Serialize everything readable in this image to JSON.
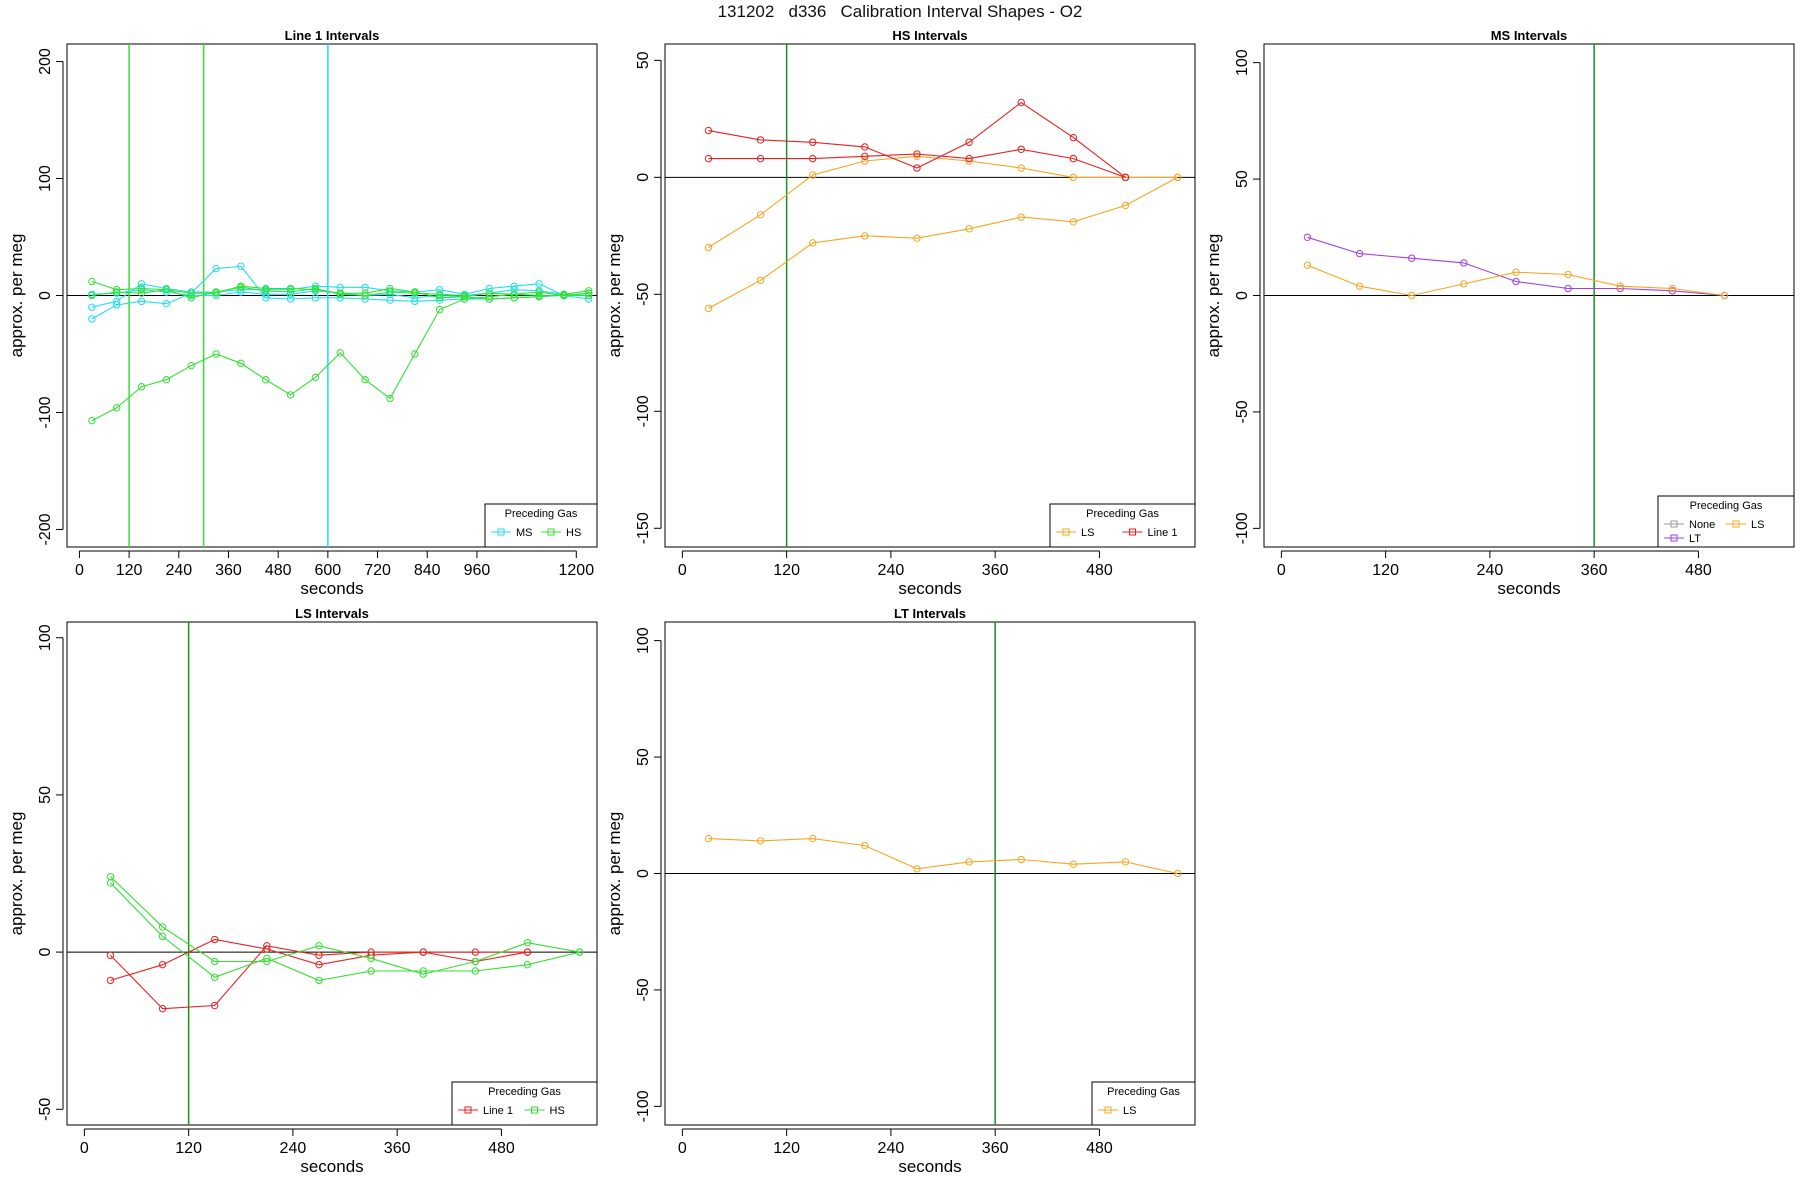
{
  "title": "131202   d336   Calibration Interval Shapes - O2",
  "colors": {
    "MS": "#22DDEE",
    "HS": "#33E033",
    "LS": "#F5A623",
    "Line 1": "#E82020",
    "LT": "#A040E0",
    "None": "#999999"
  },
  "chart_data": [
    {
      "type": "line",
      "title": "Line 1 Intervals",
      "xlabel": "seconds",
      "ylabel": "approx. per meg",
      "xlim": [
        -30,
        1250
      ],
      "ylim": [
        -215,
        215
      ],
      "xticks": [
        0,
        120,
        240,
        360,
        480,
        600,
        720,
        840,
        960,
        1200
      ],
      "yticks": [
        -200,
        -100,
        0,
        100,
        200
      ],
      "vlines": [
        {
          "x": 120,
          "color": "HS"
        },
        {
          "x": 300,
          "color": "HS"
        },
        {
          "x": 600,
          "color": "MS"
        }
      ],
      "legend": {
        "title": "Preceding Gas",
        "position": "bottom-right",
        "entries": [
          "MS",
          "HS"
        ]
      },
      "series": [
        {
          "name": "MS",
          "x": [
            30,
            90,
            150,
            210,
            270,
            330,
            390,
            450,
            510,
            570,
            630,
            690,
            750,
            810,
            870,
            930,
            990,
            1050,
            1110,
            1170,
            1230
          ],
          "y": [
            -20,
            -8,
            -5,
            -7,
            2,
            23,
            25,
            -2,
            -3,
            -2,
            -2,
            -3,
            -4,
            -5,
            -4,
            -3,
            -3,
            -2,
            -1,
            0,
            -3
          ]
        },
        {
          "name": "MS",
          "x": [
            30,
            90,
            150,
            210,
            270,
            330,
            390,
            450,
            510,
            570,
            630,
            690,
            750,
            810,
            870,
            930,
            990,
            1050,
            1110,
            1170,
            1230
          ],
          "y": [
            -10,
            -5,
            10,
            6,
            3,
            3,
            5,
            5,
            5,
            8,
            7,
            7,
            4,
            3,
            5,
            1,
            6,
            8,
            10,
            0,
            2
          ]
        },
        {
          "name": "MS",
          "x": [
            30,
            90,
            150,
            210,
            270,
            330,
            390,
            450,
            510,
            570,
            630,
            690,
            750,
            810,
            870,
            930,
            990,
            1050,
            1110,
            1170,
            1230
          ],
          "y": [
            1,
            2,
            5,
            3,
            0,
            0,
            3,
            1,
            1,
            4,
            2,
            0,
            1,
            -2,
            0,
            -1,
            2,
            5,
            4,
            1,
            0
          ]
        },
        {
          "name": "HS",
          "x": [
            30,
            90,
            150,
            210,
            270,
            330,
            390,
            450,
            510,
            570,
            630,
            690,
            750,
            810,
            870,
            930,
            990,
            1050,
            1110,
            1170,
            1230
          ],
          "y": [
            12,
            5,
            6,
            5,
            2,
            2,
            8,
            6,
            6,
            5,
            2,
            2,
            6,
            3,
            -2,
            -1,
            -3,
            -2,
            -1,
            1,
            4
          ]
        },
        {
          "name": "HS",
          "x": [
            30,
            90,
            150,
            210,
            270,
            330,
            390,
            450,
            510,
            570,
            630,
            690,
            750,
            810,
            870,
            930,
            990,
            1050,
            1110,
            1170,
            1230
          ],
          "y": [
            0,
            3,
            2,
            5,
            -2,
            3,
            7,
            4,
            3,
            6,
            1,
            0,
            3,
            2,
            1,
            0,
            2,
            1,
            3,
            0,
            2
          ]
        },
        {
          "name": "HS",
          "x": [
            30,
            90,
            150,
            210,
            270,
            330,
            390,
            450,
            510,
            570,
            630,
            690,
            750,
            810,
            870,
            930,
            990,
            1050,
            1110,
            1170,
            1230
          ],
          "y": [
            -107,
            -96,
            -78,
            -72,
            -60,
            -50,
            -58,
            -72,
            -85,
            -70,
            -49,
            -72,
            -88,
            -50,
            -12,
            -3,
            -1,
            1,
            0,
            0,
            0
          ]
        }
      ]
    },
    {
      "type": "line",
      "title": "HS Intervals",
      "xlabel": "seconds",
      "ylabel": "approx. per meg",
      "xlim": [
        -20,
        590
      ],
      "ylim": [
        -158,
        57
      ],
      "xticks": [
        0,
        120,
        240,
        360,
        480
      ],
      "yticks": [
        -150,
        -100,
        -50,
        0,
        50
      ],
      "vlines": [
        {
          "x": 120,
          "color": "#228B22"
        }
      ],
      "legend": {
        "title": "Preceding Gas",
        "position": "bottom-right",
        "entries": [
          "LS",
          "Line 1"
        ]
      },
      "series": [
        {
          "name": "LS",
          "x": [
            30,
            90,
            150,
            210,
            270,
            330,
            390,
            450,
            510,
            570
          ],
          "y": [
            -30,
            -16,
            1,
            7,
            9,
            7,
            4,
            0,
            0,
            0
          ]
        },
        {
          "name": "LS",
          "x": [
            30,
            90,
            150,
            210,
            270,
            330,
            390,
            450,
            510,
            570
          ],
          "y": [
            -56,
            -44,
            -28,
            -25,
            -26,
            -22,
            -17,
            -19,
            -12,
            0
          ]
        },
        {
          "name": "Line 1",
          "x": [
            30,
            90,
            150,
            210,
            270,
            330,
            390,
            450,
            510
          ],
          "y": [
            20,
            16,
            15,
            13,
            4,
            15,
            32,
            17,
            0
          ]
        },
        {
          "name": "Line 1",
          "x": [
            30,
            90,
            150,
            210,
            270,
            330,
            390,
            450,
            510
          ],
          "y": [
            8,
            8,
            8,
            9,
            10,
            8,
            12,
            8,
            0
          ]
        }
      ]
    },
    {
      "type": "line",
      "title": "MS Intervals",
      "xlabel": "seconds",
      "ylabel": "approx. per meg",
      "xlim": [
        -20,
        590
      ],
      "ylim": [
        -108,
        108
      ],
      "xticks": [
        0,
        120,
        240,
        360,
        480
      ],
      "yticks": [
        -100,
        -50,
        0,
        50,
        100
      ],
      "vlines": [
        {
          "x": 360,
          "color": "#228B22"
        }
      ],
      "legend": {
        "title": "Preceding Gas",
        "position": "bottom-right",
        "entries": [
          "None",
          "LS",
          "LT"
        ]
      },
      "series": [
        {
          "name": "LT",
          "x": [
            30,
            90,
            150,
            210,
            270,
            330,
            390,
            450,
            510
          ],
          "y": [
            25,
            18,
            16,
            14,
            6,
            3,
            3,
            2,
            0
          ]
        },
        {
          "name": "LS",
          "x": [
            30,
            90,
            150,
            210,
            270,
            330,
            390,
            450,
            510
          ],
          "y": [
            13,
            4,
            0,
            5,
            10,
            9,
            4,
            3,
            0
          ]
        }
      ]
    },
    {
      "type": "line",
      "title": "LS Intervals",
      "xlabel": "seconds",
      "ylabel": "approx. per meg",
      "xlim": [
        -20,
        590
      ],
      "ylim": [
        -55,
        105
      ],
      "xticks": [
        0,
        120,
        240,
        360,
        480
      ],
      "yticks": [
        -50,
        0,
        50,
        100
      ],
      "vlines": [
        {
          "x": 120,
          "color": "#228B22"
        }
      ],
      "legend": {
        "title": "Preceding Gas",
        "position": "bottom-right",
        "entries": [
          "Line 1",
          "HS"
        ]
      },
      "series": [
        {
          "name": "Line 1",
          "x": [
            30,
            90,
            150,
            210,
            270,
            330,
            390,
            450,
            510
          ],
          "y": [
            -1,
            -18,
            -17,
            2,
            -1,
            0,
            0,
            0,
            0
          ]
        },
        {
          "name": "Line 1",
          "x": [
            30,
            90,
            150,
            210,
            270,
            330,
            390,
            450,
            510
          ],
          "y": [
            -9,
            -4,
            4,
            1,
            -4,
            -1,
            0,
            -3,
            0
          ]
        },
        {
          "name": "HS",
          "x": [
            30,
            90,
            150,
            210,
            270,
            330,
            390,
            450,
            510,
            570
          ],
          "y": [
            24,
            8,
            -3,
            -3,
            2,
            -2,
            -7,
            -3,
            3,
            0
          ]
        },
        {
          "name": "HS",
          "x": [
            30,
            90,
            150,
            210,
            270,
            330,
            390,
            450,
            510,
            570
          ],
          "y": [
            22,
            5,
            -8,
            -2,
            -9,
            -6,
            -6,
            -6,
            -4,
            0
          ]
        }
      ]
    },
    {
      "type": "line",
      "title": "LT Intervals",
      "xlabel": "seconds",
      "ylabel": "approx. per meg",
      "xlim": [
        -20,
        590
      ],
      "ylim": [
        -108,
        108
      ],
      "xticks": [
        0,
        120,
        240,
        360,
        480
      ],
      "yticks": [
        -100,
        -50,
        0,
        50,
        100
      ],
      "vlines": [
        {
          "x": 360,
          "color": "#228B22"
        }
      ],
      "legend": {
        "title": "Preceding Gas",
        "position": "bottom-right",
        "entries": [
          "LS"
        ]
      },
      "series": [
        {
          "name": "LS",
          "x": [
            30,
            90,
            150,
            210,
            270,
            330,
            390,
            450,
            510,
            570
          ],
          "y": [
            15,
            14,
            15,
            12,
            2,
            5,
            6,
            4,
            5,
            0
          ]
        }
      ]
    }
  ]
}
